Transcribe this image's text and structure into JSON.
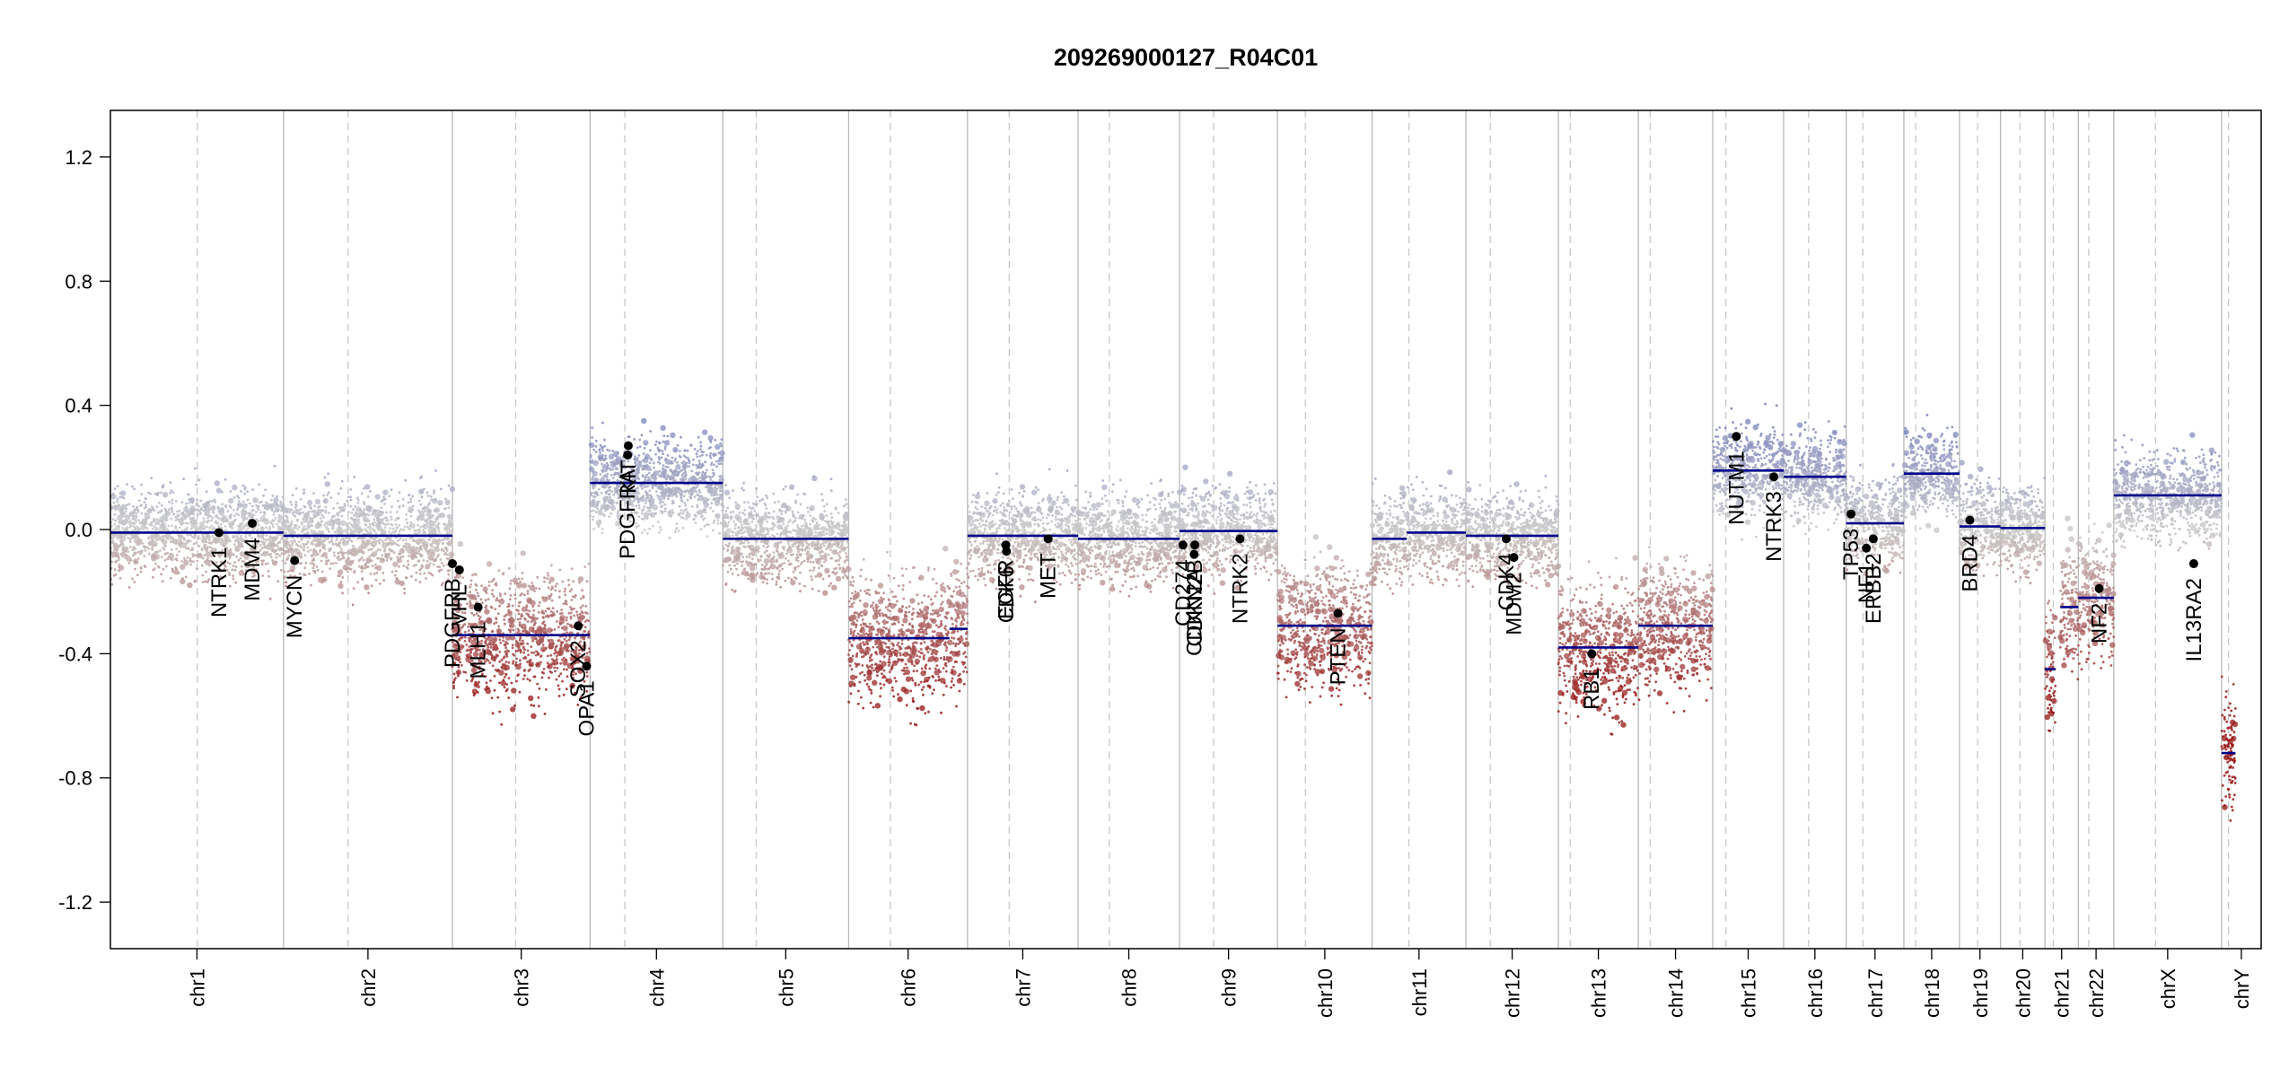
{
  "chart_data": {
    "type": "scatter",
    "title": "209269000127_R04C01",
    "xlabel": "",
    "ylabel": "",
    "ylim": [
      -1.35,
      1.35
    ],
    "y_ticks": [
      "1.2",
      "0.8",
      "0.4",
      "0.0",
      "-0.4",
      "-0.8",
      "-1.2"
    ],
    "grid": "chromosome boundaries (solid) and centromeres (dashed)",
    "chromosomes": [
      {
        "name": "chr1",
        "len": 249,
        "cen": 125
      },
      {
        "name": "chr2",
        "len": 243,
        "cen": 93
      },
      {
        "name": "chr3",
        "len": 198,
        "cen": 91
      },
      {
        "name": "chr4",
        "len": 191,
        "cen": 50
      },
      {
        "name": "chr5",
        "len": 181,
        "cen": 48
      },
      {
        "name": "chr6",
        "len": 171,
        "cen": 60
      },
      {
        "name": "chr7",
        "len": 159,
        "cen": 60
      },
      {
        "name": "chr8",
        "len": 146,
        "cen": 45
      },
      {
        "name": "chr9",
        "len": 141,
        "cen": 49
      },
      {
        "name": "chr10",
        "len": 136,
        "cen": 40
      },
      {
        "name": "chr11",
        "len": 135,
        "cen": 53
      },
      {
        "name": "chr12",
        "len": 133,
        "cen": 35
      },
      {
        "name": "chr13",
        "len": 115,
        "cen": 17
      },
      {
        "name": "chr14",
        "len": 107,
        "cen": 17
      },
      {
        "name": "chr15",
        "len": 102,
        "cen": 19
      },
      {
        "name": "chr16",
        "len": 90,
        "cen": 36
      },
      {
        "name": "chr17",
        "len": 83,
        "cen": 24
      },
      {
        "name": "chr18",
        "len": 80,
        "cen": 17
      },
      {
        "name": "chr19",
        "len": 59,
        "cen": 26
      },
      {
        "name": "chr20",
        "len": 64,
        "cen": 28
      },
      {
        "name": "chr21",
        "len": 48,
        "cen": 12
      },
      {
        "name": "chr22",
        "len": 51,
        "cen": 15
      },
      {
        "name": "chrX",
        "len": 155,
        "cen": 60
      },
      {
        "name": "chrY",
        "len": 57,
        "cen": 10
      }
    ],
    "segments": [
      {
        "chr": "chr1",
        "start": 0,
        "end": 200,
        "value": -0.01
      },
      {
        "chr": "chr1",
        "start": 200,
        "end": 249,
        "value": -0.01
      },
      {
        "chr": "chr2",
        "start": 0,
        "end": 243,
        "value": -0.02
      },
      {
        "chr": "chr3",
        "start": 0,
        "end": 198,
        "value": -0.34
      },
      {
        "chr": "chr4",
        "start": 0,
        "end": 191,
        "value": 0.15
      },
      {
        "chr": "chr5",
        "start": 0,
        "end": 181,
        "value": -0.03
      },
      {
        "chr": "chr6",
        "start": 0,
        "end": 145,
        "value": -0.35
      },
      {
        "chr": "chr6",
        "start": 145,
        "end": 171,
        "value": -0.32
      },
      {
        "chr": "chr7",
        "start": 0,
        "end": 159,
        "value": -0.02
      },
      {
        "chr": "chr8",
        "start": 0,
        "end": 146,
        "value": -0.03
      },
      {
        "chr": "chr9",
        "start": 0,
        "end": 141,
        "value": -0.005
      },
      {
        "chr": "chr10",
        "start": 0,
        "end": 136,
        "value": -0.31
      },
      {
        "chr": "chr11",
        "start": 0,
        "end": 50,
        "value": -0.03
      },
      {
        "chr": "chr11",
        "start": 50,
        "end": 135,
        "value": -0.01
      },
      {
        "chr": "chr12",
        "start": 0,
        "end": 133,
        "value": -0.02
      },
      {
        "chr": "chr13",
        "start": 0,
        "end": 115,
        "value": -0.38
      },
      {
        "chr": "chr14",
        "start": 0,
        "end": 107,
        "value": -0.31
      },
      {
        "chr": "chr15",
        "start": 0,
        "end": 102,
        "value": 0.19
      },
      {
        "chr": "chr16",
        "start": 0,
        "end": 90,
        "value": 0.17
      },
      {
        "chr": "chr17",
        "start": 0,
        "end": 83,
        "value": 0.02
      },
      {
        "chr": "chr18",
        "start": 0,
        "end": 80,
        "value": 0.18
      },
      {
        "chr": "chr19",
        "start": 0,
        "end": 59,
        "value": 0.01
      },
      {
        "chr": "chr20",
        "start": 0,
        "end": 64,
        "value": 0.005
      },
      {
        "chr": "chr21",
        "start": 0,
        "end": 15,
        "value": -0.45
      },
      {
        "chr": "chr21",
        "start": 22,
        "end": 48,
        "value": -0.25
      },
      {
        "chr": "chr22",
        "start": 0,
        "end": 51,
        "value": -0.22
      },
      {
        "chr": "chrX",
        "start": 0,
        "end": 155,
        "value": 0.11
      },
      {
        "chr": "chrY",
        "start": 0,
        "end": 20,
        "value": -0.72
      }
    ],
    "genes": [
      {
        "name": "NTRK1",
        "chr": "chr1",
        "pos": 156,
        "value": -0.01
      },
      {
        "name": "MDM4",
        "chr": "chr1",
        "pos": 204,
        "value": 0.02
      },
      {
        "name": "MYCN",
        "chr": "chr2",
        "pos": 16,
        "value": -0.1
      },
      {
        "name": "PDGFRB",
        "chr": "chr3",
        "pos": 0,
        "value": -0.11
      },
      {
        "name": "VHL",
        "chr": "chr3",
        "pos": 10,
        "value": -0.13
      },
      {
        "name": "MLH1",
        "chr": "chr3",
        "pos": 37,
        "value": -0.25
      },
      {
        "name": "SOX2",
        "chr": "chr3",
        "pos": 181,
        "value": -0.31
      },
      {
        "name": "OPA1",
        "chr": "chr3",
        "pos": 193,
        "value": -0.44
      },
      {
        "name": "KIT",
        "chr": "chr4",
        "pos": 55,
        "value": 0.27
      },
      {
        "name": "PDGFRA",
        "chr": "chr4",
        "pos": 54,
        "value": 0.24
      },
      {
        "name": "EGFR",
        "chr": "chr7",
        "pos": 55,
        "value": -0.05
      },
      {
        "name": "CDK6",
        "chr": "chr7",
        "pos": 56,
        "value": -0.07
      },
      {
        "name": "MET",
        "chr": "chr7",
        "pos": 116,
        "value": -0.03
      },
      {
        "name": "CD274",
        "chr": "chr9",
        "pos": 5,
        "value": -0.05
      },
      {
        "name": "CDKN2A",
        "chr": "chr9",
        "pos": 21,
        "value": -0.08
      },
      {
        "name": "CDKN2B",
        "chr": "chr9",
        "pos": 22,
        "value": -0.05
      },
      {
        "name": "NTRK2",
        "chr": "chr9",
        "pos": 87,
        "value": -0.03
      },
      {
        "name": "PTEN",
        "chr": "chr10",
        "pos": 87,
        "value": -0.27
      },
      {
        "name": "CDK4",
        "chr": "chr12",
        "pos": 58,
        "value": -0.03
      },
      {
        "name": "MDM2",
        "chr": "chr12",
        "pos": 69,
        "value": -0.09
      },
      {
        "name": "RB1",
        "chr": "chr13",
        "pos": 48,
        "value": -0.4
      },
      {
        "name": "NUTM1",
        "chr": "chr15",
        "pos": 34,
        "value": 0.3
      },
      {
        "name": "NTRK3",
        "chr": "chr15",
        "pos": 88,
        "value": 0.17
      },
      {
        "name": "TP53",
        "chr": "chr17",
        "pos": 7,
        "value": 0.05
      },
      {
        "name": "NF1",
        "chr": "chr17",
        "pos": 29,
        "value": -0.06
      },
      {
        "name": "ERBB2",
        "chr": "chr17",
        "pos": 39,
        "value": -0.03
      },
      {
        "name": "BRD4",
        "chr": "chr19",
        "pos": 15,
        "value": 0.03
      },
      {
        "name": "NF2",
        "chr": "chr22",
        "pos": 30,
        "value": -0.19
      },
      {
        "name": "IL13RA2",
        "chr": "chrX",
        "pos": 115,
        "value": -0.11
      }
    ]
  }
}
